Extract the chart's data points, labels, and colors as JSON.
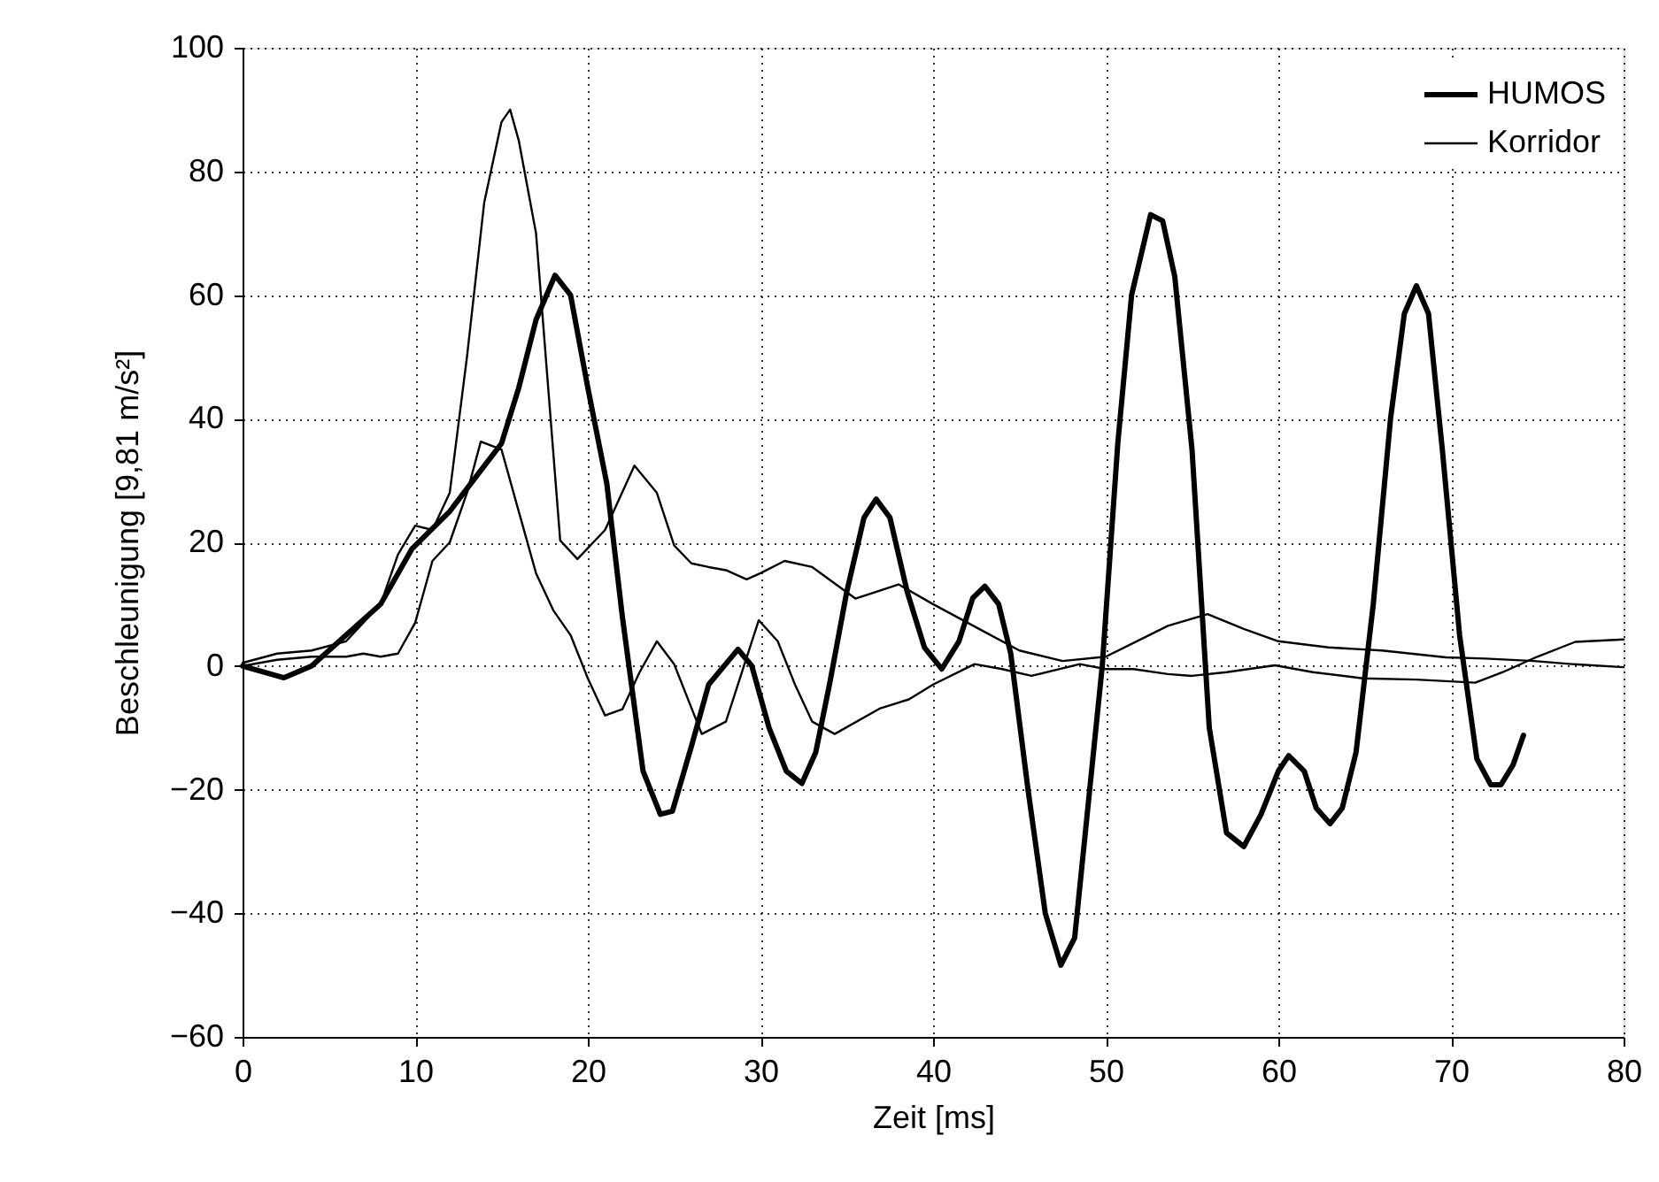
{
  "chart_data": {
    "type": "line",
    "xlabel": "Zeit [ms]",
    "ylabel": "Beschleunigung [9,81 m/s²]",
    "xlim": [
      0,
      80
    ],
    "ylim": [
      -60,
      100
    ],
    "xticks": [
      0,
      10,
      20,
      30,
      40,
      50,
      60,
      70,
      80
    ],
    "yticks": [
      -60,
      -40,
      -20,
      0,
      20,
      40,
      60,
      80,
      100
    ],
    "grid": true,
    "legend": "top right",
    "marker": "none",
    "line_style": "solid",
    "series": [
      {
        "name": "HUMOS",
        "color": "#000000",
        "x": [
          0,
          1,
          2.4,
          4,
          6,
          8,
          9.8,
          12,
          13.6,
          15,
          16,
          17,
          18.1,
          19,
          20,
          21.1,
          22,
          23.2,
          24.2,
          24.9,
          26,
          27,
          28.7,
          29.5,
          30.5,
          31.5,
          32.4,
          33.2,
          34,
          35,
          36,
          36.7,
          37.5,
          38.5,
          39.5,
          40.5,
          41.5,
          42.3,
          43,
          43.8,
          44.5,
          45.5,
          46.5,
          47.4,
          48.2,
          49,
          49.8,
          50.7,
          51.5,
          52.6,
          53.3,
          54,
          55,
          56,
          57,
          58,
          59,
          60,
          60.6,
          61.5,
          62.2,
          63,
          63.7,
          64.5,
          65.5,
          66.5,
          67.3,
          68,
          68.7,
          69.5,
          70.5,
          71.5,
          72.3,
          72.9,
          73.6,
          74.2
        ],
        "values": [
          0,
          -0.8,
          -1.9,
          0,
          5,
          10,
          18.9,
          25,
          30.9,
          36,
          45,
          56,
          63.2,
          60,
          45,
          29.5,
          8,
          -17,
          -24,
          -23.5,
          -13,
          -3,
          2.7,
          0,
          -10,
          -17,
          -19,
          -14,
          -3,
          12,
          24,
          27,
          24,
          12,
          3,
          -0.5,
          4,
          11,
          12.9,
          10,
          2,
          -20,
          -40,
          -48.4,
          -44,
          -22,
          0,
          36,
          60,
          73,
          72,
          63,
          35,
          -10,
          -27,
          -29.2,
          -24,
          -17,
          -14.5,
          -17,
          -23,
          -25.5,
          -23,
          -14,
          10,
          40,
          57,
          61.5,
          57,
          35,
          5,
          -15,
          -19.2,
          -19.2,
          -16,
          -11.2
        ]
      },
      {
        "name": "Korridor",
        "color": "#000000",
        "x": [
          0,
          2,
          4,
          6,
          8,
          9,
          10,
          11,
          12,
          13,
          14,
          15,
          15.5,
          16,
          17,
          18.4,
          19.4,
          21,
          22.7,
          24,
          25,
          26,
          27,
          28,
          29.2,
          30,
          31.4,
          33,
          35.5,
          38,
          40,
          43,
          45,
          47.5,
          50,
          53.6,
          55.9,
          58,
          60,
          62.9,
          66,
          69.7,
          72,
          74.8,
          77,
          80
        ],
        "values": [
          0.5,
          2,
          2.5,
          4,
          10,
          18,
          22.7,
          22,
          28,
          50,
          75,
          88,
          90,
          85,
          70,
          20.3,
          17.3,
          22,
          32.4,
          28,
          19.5,
          16.6,
          16,
          15.5,
          14,
          15,
          17,
          16,
          10.9,
          13.2,
          10,
          5.5,
          2.5,
          0.8,
          1.5,
          6.5,
          8.4,
          6,
          4,
          3,
          2.5,
          1.4,
          1.2,
          0.8,
          0.3,
          -0.2
        ]
      },
      {
        "color": "#000000",
        "x": [
          0,
          2,
          4,
          6,
          7,
          8,
          9,
          10,
          11,
          12,
          13,
          13.8,
          15,
          16,
          17,
          18,
          19,
          20,
          21,
          22,
          23,
          24,
          25,
          26.6,
          28,
          29.9,
          31,
          32,
          33,
          34.3,
          36.9,
          38.6,
          40,
          42.4,
          44,
          45.7,
          48.5,
          50,
          51.6,
          53.6,
          55,
          57,
          59.8,
          62,
          64.9,
          68,
          71.4,
          73,
          75,
          77.2,
          80
        ],
        "values": [
          0,
          1,
          1.5,
          1.5,
          2,
          1.5,
          2,
          7,
          17,
          20,
          28,
          36.3,
          35,
          25,
          15,
          9,
          5,
          -2,
          -8,
          -7,
          -1,
          4,
          0.3,
          -11,
          -9,
          7.4,
          4,
          -3,
          -9,
          -11,
          -6.9,
          -5.4,
          -3,
          0.3,
          -0.5,
          -1.6,
          0.3,
          -0.5,
          -0.5,
          -1.3,
          -1.6,
          -1,
          0.1,
          -1,
          -2,
          -2.2,
          -2.7,
          -1,
          1.5,
          3.9,
          4.3
        ]
      }
    ]
  }
}
